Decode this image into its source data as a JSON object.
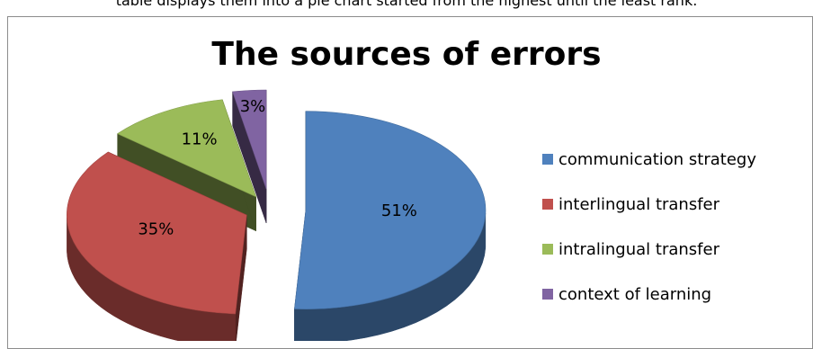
{
  "page": {
    "caption": "table displays them into a pie chart started from the highest until the least rank."
  },
  "chart_data": {
    "type": "pie",
    "title": "The sources of errors",
    "legend_position": "right",
    "slices": [
      {
        "name": "communication strategy",
        "value": 51,
        "label": "51%",
        "color": "#4F81BD"
      },
      {
        "name": "interlingual transfer",
        "value": 35,
        "label": "35%",
        "color": "#C0504D"
      },
      {
        "name": "intralingual transfer",
        "value": 11,
        "label": "11%",
        "color": "#9BBB59"
      },
      {
        "name": "context of learning",
        "value": 3,
        "label": "3%",
        "color": "#8064A2"
      }
    ]
  }
}
